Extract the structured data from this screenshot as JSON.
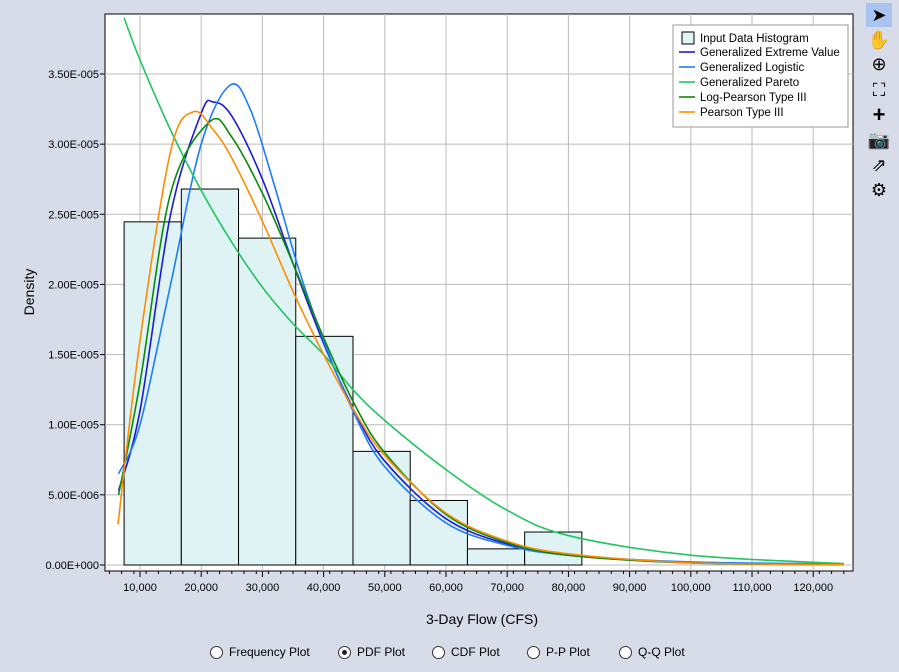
{
  "chart_data": {
    "type": "histogram+line",
    "xlabel": "3-Day Flow (CFS)",
    "ylabel": "Density",
    "xlim": [
      4280,
      126500
    ],
    "ylim": [
      0,
      3.93e-05
    ],
    "xticks": [
      10000,
      20000,
      30000,
      40000,
      50000,
      60000,
      70000,
      80000,
      90000,
      100000,
      110000,
      120000
    ],
    "xtick_labels": [
      "10,000",
      "20,000",
      "30,000",
      "40,000",
      "50,000",
      "60,000",
      "70,000",
      "80,000",
      "90,000",
      "100,000",
      "110,000",
      "120,000"
    ],
    "yticks": [
      0,
      5e-06,
      1e-05,
      1.5e-05,
      2e-05,
      2.5e-05,
      3e-05,
      3.5e-05
    ],
    "ytick_labels": [
      "0.00E+000",
      "5.00E-006",
      "1.00E-005",
      "1.50E-005",
      "2.00E-005",
      "2.50E-005",
      "3.00E-005",
      "3.50E-005"
    ],
    "grid": true,
    "legend": "top-right",
    "histogram": {
      "name": "Input Data Histogram",
      "color": "#dff3f4",
      "bin_edges": [
        7400,
        16750,
        26100,
        35450,
        44800,
        54150,
        63500,
        72850,
        82200
      ],
      "values": [
        2.446e-05,
        2.68e-05,
        2.33e-05,
        1.63e-05,
        8.1e-06,
        4.6e-06,
        1.15e-06,
        2.35e-06
      ]
    },
    "series": [
      {
        "name": "Generalized Extreme Value",
        "color": "#1a1adc",
        "points": [
          [
            6500,
            5.3e-06
          ],
          [
            10000,
            1.1e-05
          ],
          [
            15000,
            2.5e-05
          ],
          [
            20000,
            3.22e-05
          ],
          [
            22000,
            3.3e-05
          ],
          [
            25000,
            3.2e-05
          ],
          [
            30000,
            2.75e-05
          ],
          [
            35000,
            2.15e-05
          ],
          [
            40000,
            1.58e-05
          ],
          [
            45000,
            1.1e-05
          ],
          [
            50000,
            7.4e-06
          ],
          [
            60000,
            3.3e-06
          ],
          [
            70000,
            1.5e-06
          ],
          [
            80000,
            7e-07
          ],
          [
            100000,
            1.6e-07
          ],
          [
            125000,
            3e-08
          ]
        ]
      },
      {
        "name": "Generalized Logistic",
        "color": "#1e7bff",
        "points": [
          [
            6500,
            6.5e-06
          ],
          [
            10000,
            1e-05
          ],
          [
            15000,
            2e-05
          ],
          [
            20000,
            3e-05
          ],
          [
            24700,
            3.42e-05
          ],
          [
            28000,
            3.25e-05
          ],
          [
            32000,
            2.7e-05
          ],
          [
            36000,
            2.1e-05
          ],
          [
            40000,
            1.6e-05
          ],
          [
            45000,
            1.08e-05
          ],
          [
            50000,
            7e-06
          ],
          [
            60000,
            3e-06
          ],
          [
            70000,
            1.4e-06
          ],
          [
            80000,
            7e-07
          ],
          [
            100000,
            2.2e-07
          ],
          [
            125000,
            7e-08
          ]
        ]
      },
      {
        "name": "Generalized Pareto",
        "color": "#22c55e",
        "points": [
          [
            7400,
            3.9e-05
          ],
          [
            10000,
            3.6e-05
          ],
          [
            15000,
            3.1e-05
          ],
          [
            20000,
            2.67e-05
          ],
          [
            25000,
            2.3e-05
          ],
          [
            30000,
            1.98e-05
          ],
          [
            35000,
            1.72e-05
          ],
          [
            40000,
            1.5e-05
          ],
          [
            45000,
            1.24e-05
          ],
          [
            50000,
            1.03e-05
          ],
          [
            60000,
            6.8e-06
          ],
          [
            70000,
            3.9e-06
          ],
          [
            80000,
            2.1e-06
          ],
          [
            100000,
            7e-07
          ],
          [
            125000,
            1e-07
          ]
        ]
      },
      {
        "name": "Log-Pearson Type III",
        "color": "#0a8a0a",
        "points": [
          [
            6500,
            5e-06
          ],
          [
            10000,
            1.3e-05
          ],
          [
            15000,
            2.65e-05
          ],
          [
            21400,
            3.16e-05
          ],
          [
            25000,
            3.05e-05
          ],
          [
            30000,
            2.65e-05
          ],
          [
            35000,
            2.15e-05
          ],
          [
            40000,
            1.62e-05
          ],
          [
            45000,
            1.15e-05
          ],
          [
            50000,
            8e-06
          ],
          [
            60000,
            3.6e-06
          ],
          [
            70000,
            1.6e-06
          ],
          [
            80000,
            7e-07
          ],
          [
            100000,
            1.5e-07
          ],
          [
            125000,
            3e-08
          ]
        ]
      },
      {
        "name": "Pearson Type III",
        "color": "#ff8c00",
        "points": [
          [
            6400,
            2.9e-06
          ],
          [
            10000,
            1.6e-05
          ],
          [
            15000,
            2.95e-05
          ],
          [
            18700,
            3.23e-05
          ],
          [
            22000,
            3.1e-05
          ],
          [
            25000,
            2.9e-05
          ],
          [
            30000,
            2.45e-05
          ],
          [
            35000,
            1.95e-05
          ],
          [
            40000,
            1.5e-05
          ],
          [
            45000,
            1.1e-05
          ],
          [
            50000,
            7.8e-06
          ],
          [
            60000,
            3.7e-06
          ],
          [
            70000,
            1.7e-06
          ],
          [
            80000,
            8e-07
          ],
          [
            100000,
            1.6e-07
          ],
          [
            125000,
            3e-08
          ]
        ]
      }
    ]
  },
  "toolbar": [
    "pointer-icon",
    "pan-hand-icon",
    "zoom-in-icon",
    "zoom-fit-icon",
    "add-icon",
    "camera-icon",
    "export-icon",
    "settings-icon"
  ],
  "radios": [
    {
      "label": "Frequency Plot",
      "checked": false
    },
    {
      "label": "PDF Plot",
      "checked": true
    },
    {
      "label": "CDF Plot",
      "checked": false
    },
    {
      "label": "P-P Plot",
      "checked": false
    },
    {
      "label": "Q-Q Plot",
      "checked": false
    }
  ]
}
